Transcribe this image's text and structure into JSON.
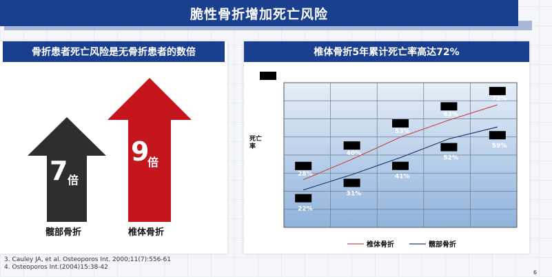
{
  "title": "脆性骨折增加死亡风险",
  "left_panel": {
    "header": "骨折患者死亡风险是无骨折患者的数倍",
    "arrows": [
      {
        "number": "7",
        "unit": "倍",
        "label": "髋部骨折",
        "color": "#2e2e2e",
        "value": 7
      },
      {
        "number": "9",
        "unit": "倍",
        "label": "椎体骨折",
        "color": "#c4161c",
        "value": 9
      }
    ]
  },
  "right_panel": {
    "header": "椎体骨折5年累计死亡率高达72%"
  },
  "chart_data": {
    "type": "line",
    "ylabel": "死亡率",
    "x": [
      1,
      2,
      3,
      4,
      5
    ],
    "series": [
      {
        "name": "椎体骨折",
        "color": "#c0504d",
        "values": [
          28,
          40,
          53,
          63,
          72
        ],
        "labels": [
          "28%",
          "40%",
          "53%",
          "63%",
          "72%"
        ]
      },
      {
        "name": "髋部骨折",
        "color": "#1f3b73",
        "values": [
          22,
          31,
          41,
          52,
          59
        ],
        "labels": [
          "22%",
          "31%",
          "41%",
          "52%",
          "59%"
        ]
      }
    ],
    "ylim": [
      0,
      85
    ],
    "grid": true,
    "legend": "bottom"
  },
  "references": [
    "3.   Cauley JA, et al. Osteoporos Int. 2000;11(7):556-61",
    "4.   Osteoporos Int.(2004)15:38-42"
  ],
  "page_number": "6"
}
